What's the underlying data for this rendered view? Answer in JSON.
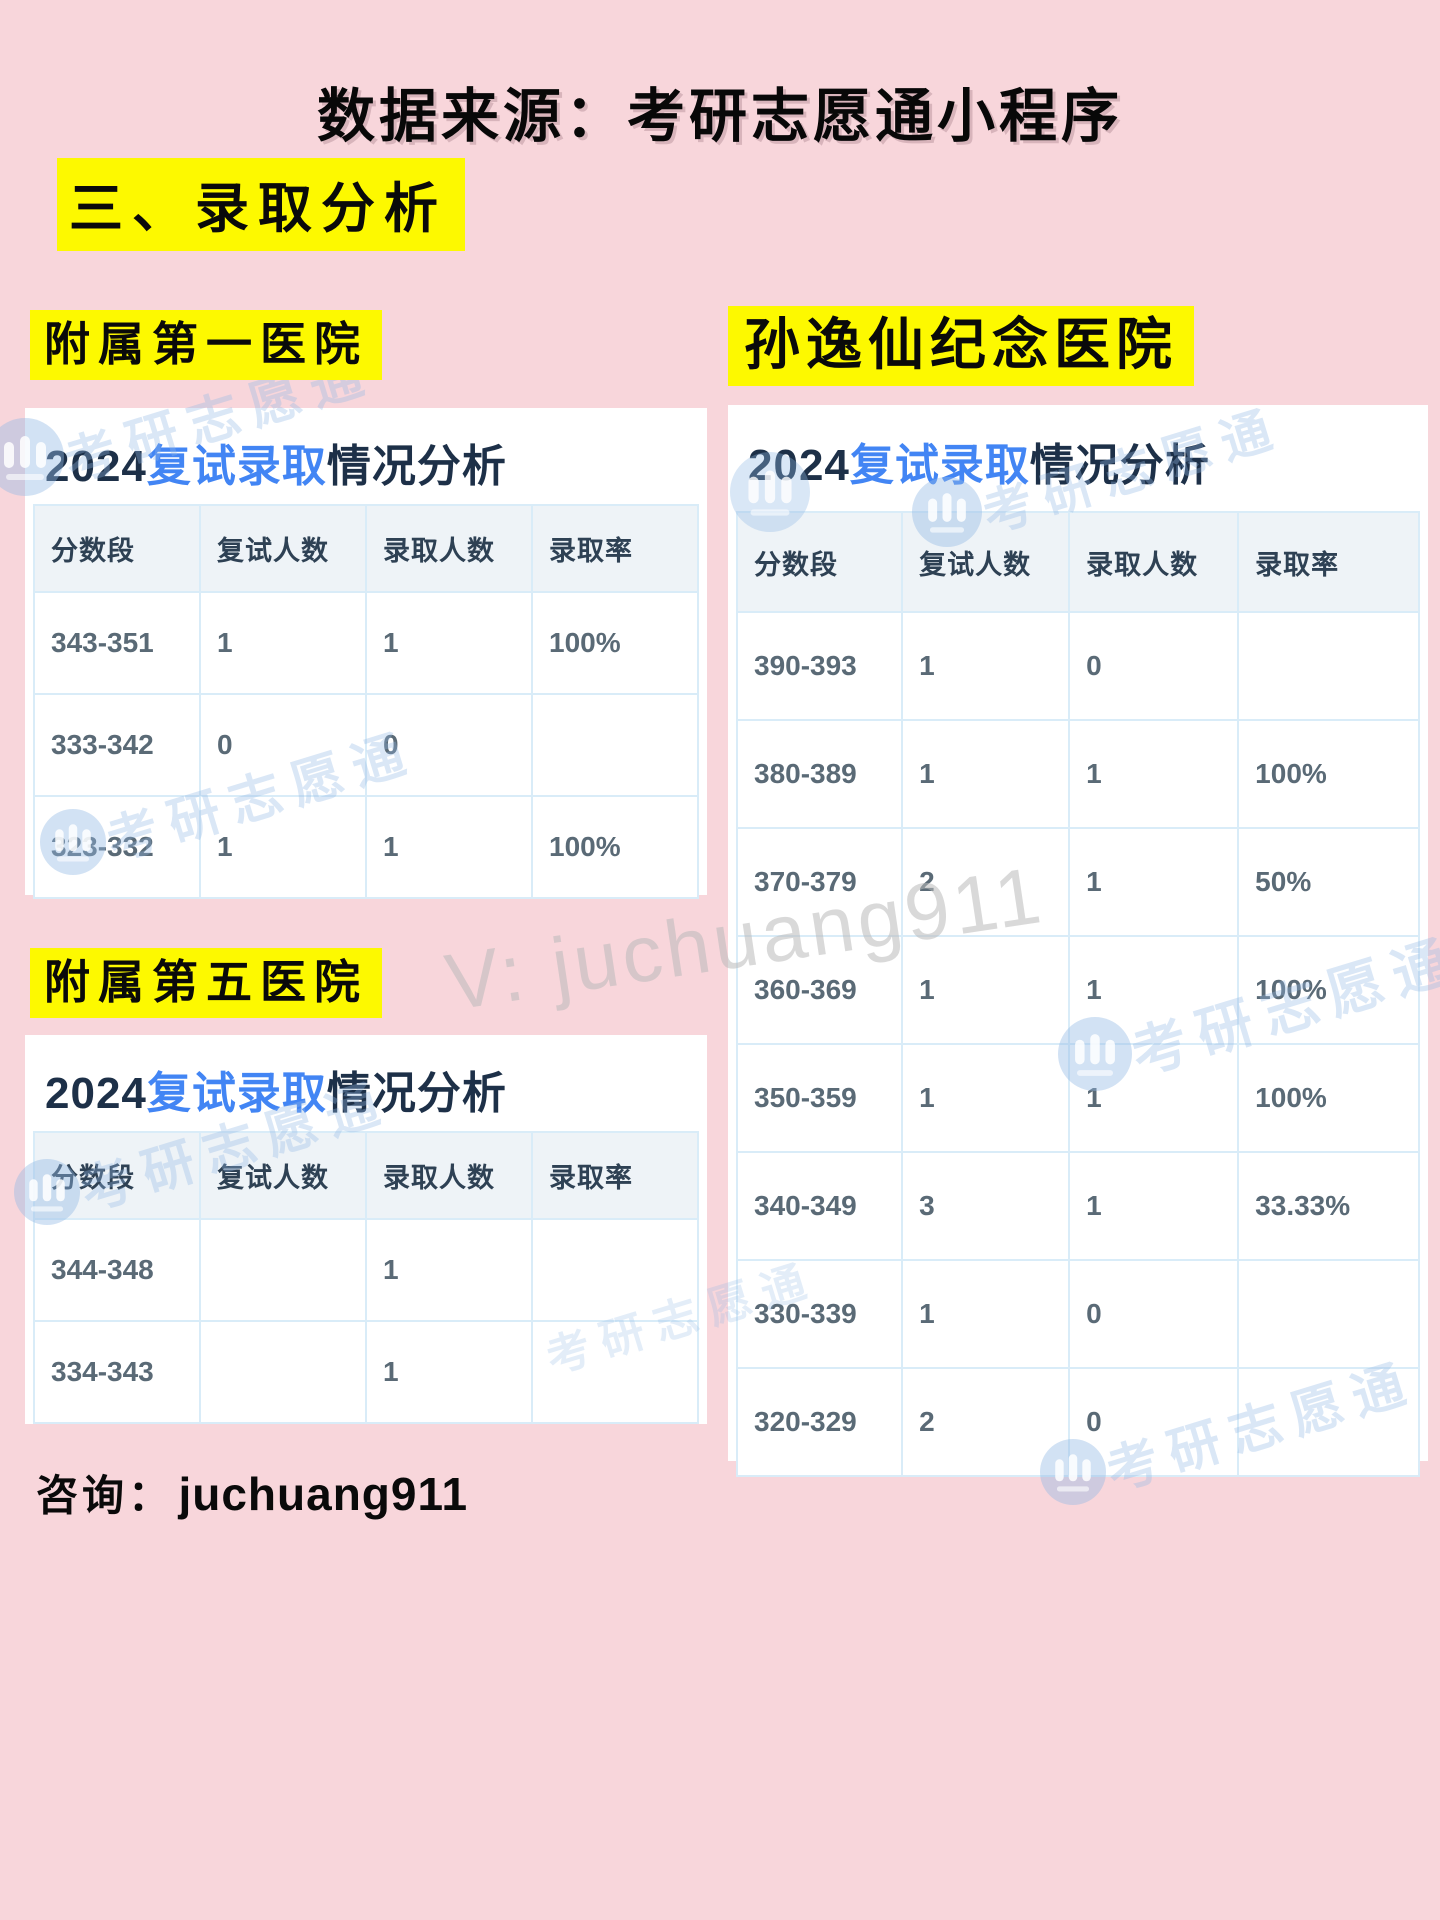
{
  "page": {
    "title": "数据来源：考研志愿通小程序",
    "section_heading": "三、录取分析",
    "consult_label": "咨询：",
    "consult_value": "juchuang911"
  },
  "watermarks": {
    "big": "V: juchuang911",
    "brand": "考研志愿通"
  },
  "colors": {
    "page_background": "#f8d6db",
    "highlight_yellow": "#fdf900",
    "title_navy": "#1d3048",
    "title_blue": "#4285f4",
    "table_border": "#d9ecf8",
    "header_cell_bg": "#eef3f7",
    "header_text": "#2e4154",
    "cell_text": "#5a6a76"
  },
  "tables": [
    {
      "id": "first-hospital",
      "label": "附属第一医院",
      "title_year": "2024",
      "title_highlight": "复试录取",
      "title_rest": "情况分析",
      "columns": [
        "分数段",
        "复试人数",
        "录取人数",
        "录取率"
      ],
      "rows": [
        [
          "343-351",
          "1",
          "1",
          "100%"
        ],
        [
          "333-342",
          "0",
          "0",
          ""
        ],
        [
          "323-332",
          "1",
          "1",
          "100%"
        ]
      ]
    },
    {
      "id": "fifth-hospital",
      "label": "附属第五医院",
      "title_year": "2024",
      "title_highlight": "复试录取",
      "title_rest": "情况分析",
      "columns": [
        "分数段",
        "复试人数",
        "录取人数",
        "录取率"
      ],
      "rows": [
        [
          "344-348",
          "",
          "1",
          ""
        ],
        [
          "334-343",
          "",
          "1",
          ""
        ]
      ]
    },
    {
      "id": "memorial-hospital",
      "label": "孙逸仙纪念医院",
      "title_year": "2024",
      "title_highlight": "复试录取",
      "title_rest": "情况分析",
      "columns": [
        "分数段",
        "复试人数",
        "录取人数",
        "录取率"
      ],
      "rows": [
        [
          "390-393",
          "1",
          "0",
          ""
        ],
        [
          "380-389",
          "1",
          "1",
          "100%"
        ],
        [
          "370-379",
          "2",
          "1",
          "50%"
        ],
        [
          "360-369",
          "1",
          "1",
          "100%"
        ],
        [
          "350-359",
          "1",
          "1",
          "100%"
        ],
        [
          "340-349",
          "3",
          "1",
          "33.33%"
        ],
        [
          "330-339",
          "1",
          "0",
          ""
        ],
        [
          "320-329",
          "2",
          "0",
          ""
        ]
      ]
    }
  ]
}
